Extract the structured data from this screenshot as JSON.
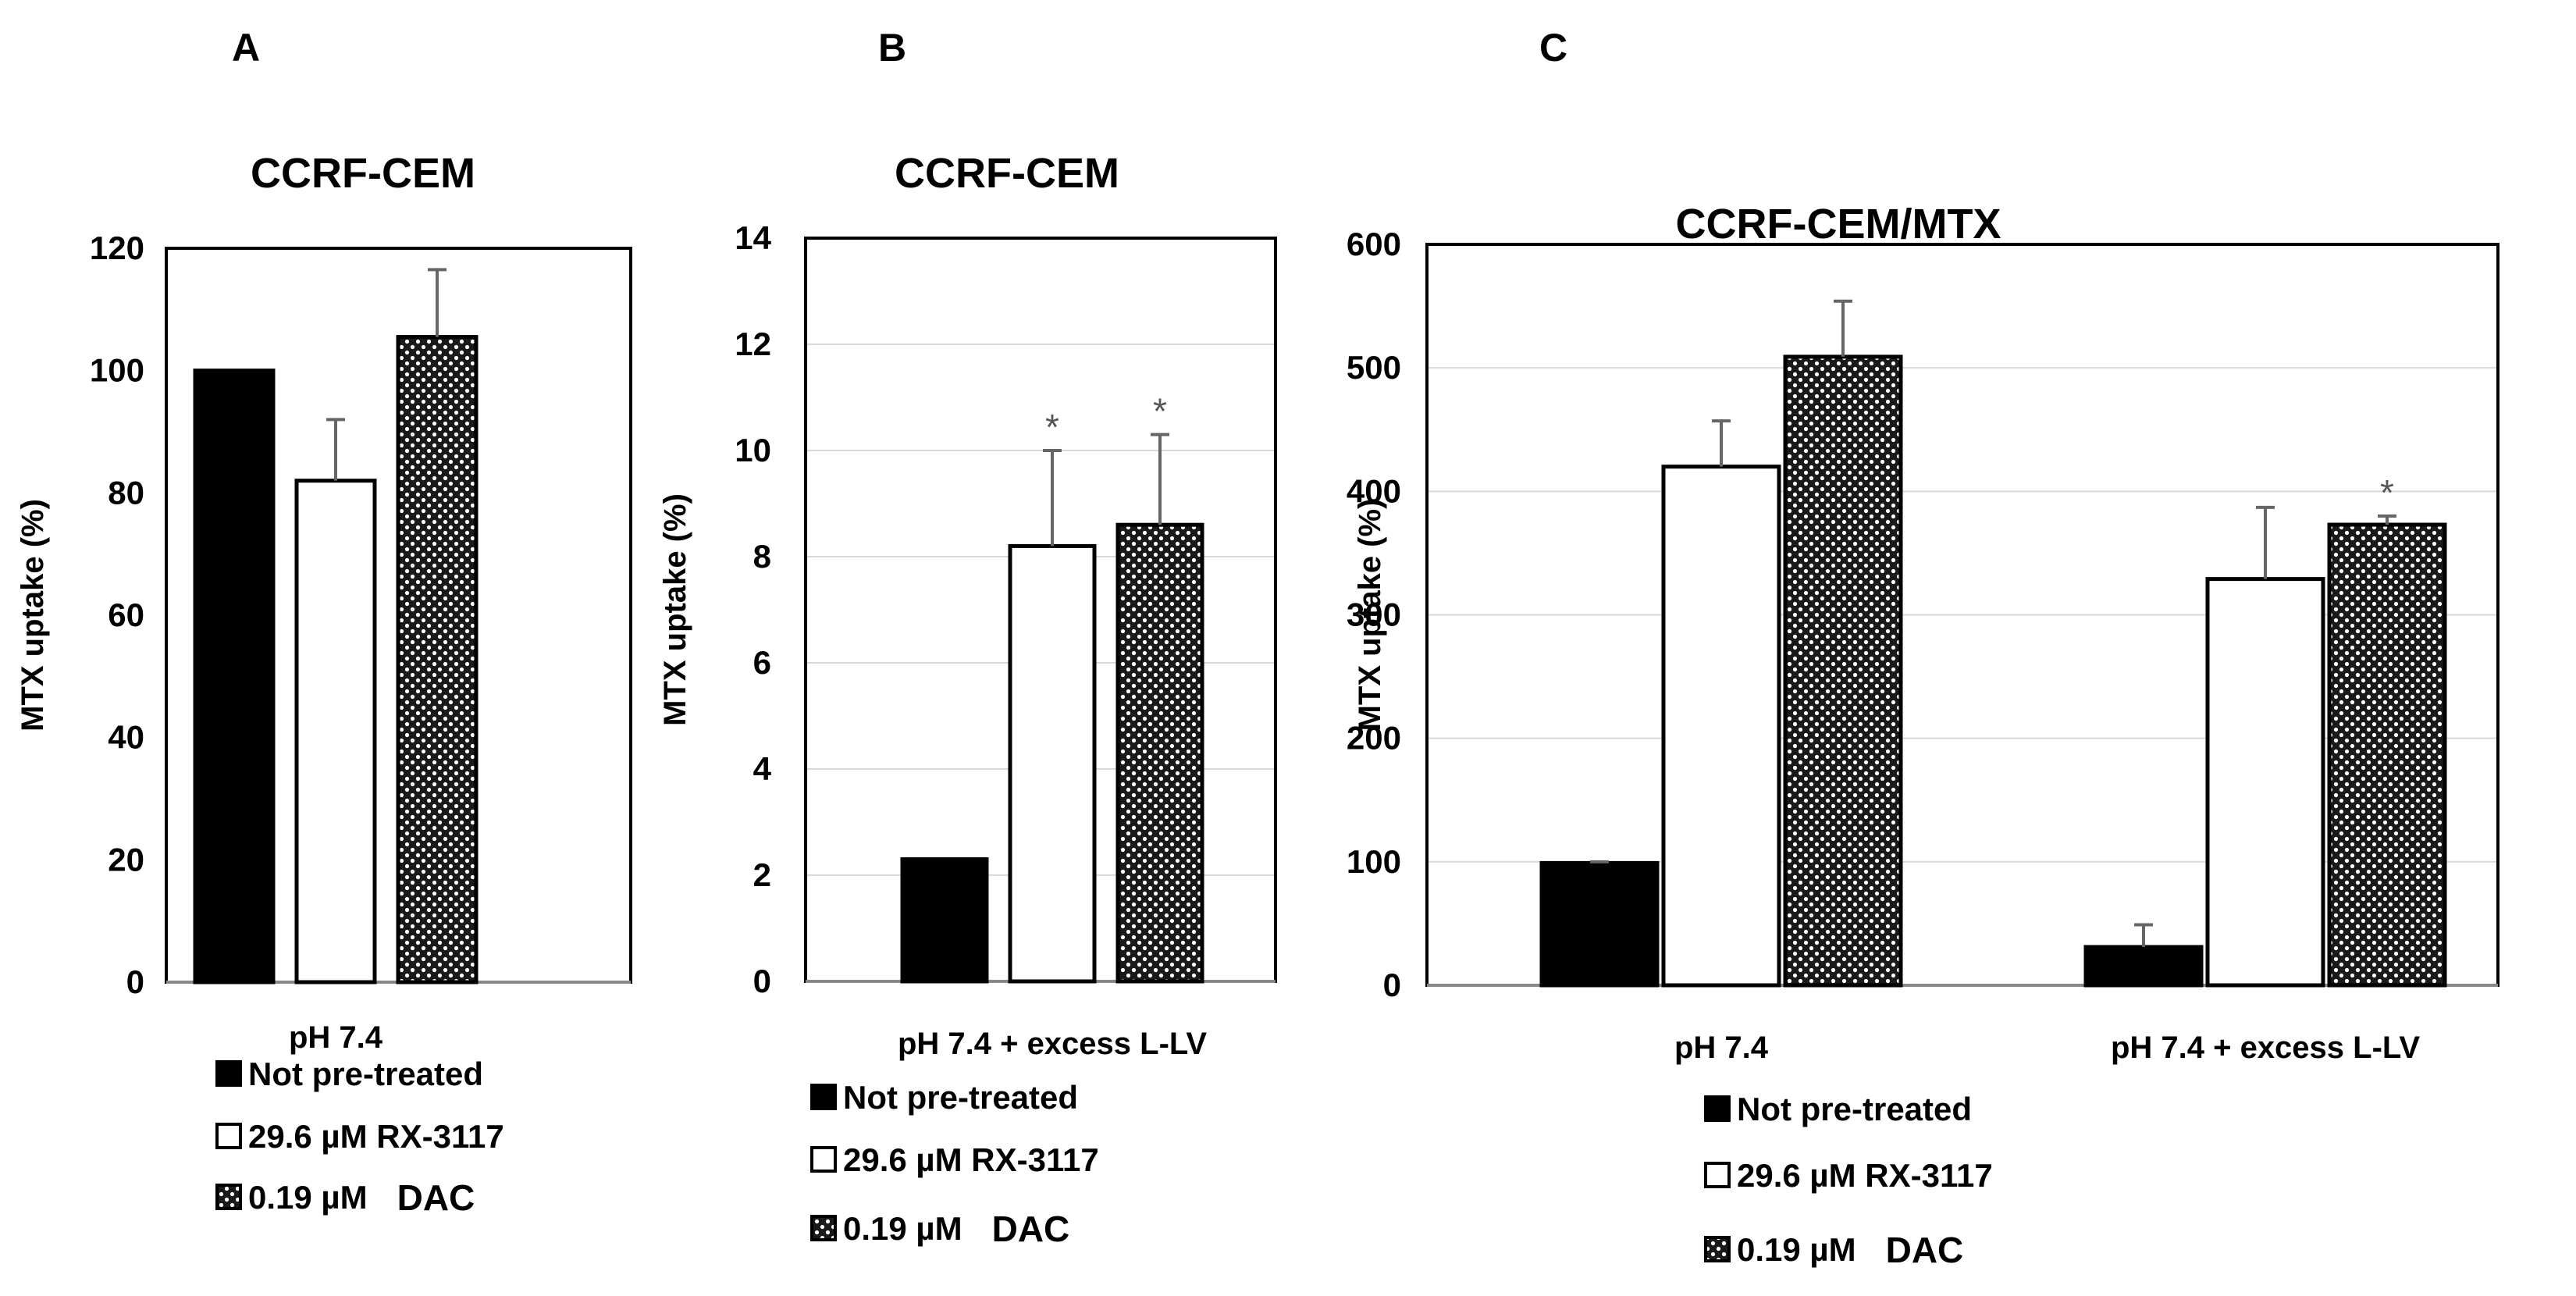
{
  "chart_data": [
    {
      "type": "bar",
      "panel": "A",
      "title": "CCRF-CEM",
      "ylabel": "MTX uptake (%)",
      "xlabel": "",
      "ylim": [
        0,
        120
      ],
      "yticks": [
        0,
        20,
        40,
        60,
        80,
        100,
        120
      ],
      "grid": false,
      "categories": [
        "pH 7.4"
      ],
      "series": [
        {
          "name": "Not pre-treated",
          "values": [
            100
          ],
          "errors": [
            0
          ],
          "significant": [
            false
          ]
        },
        {
          "name": "29.6 µM RX-3117",
          "values": [
            82
          ],
          "errors": [
            10
          ],
          "significant": [
            false
          ]
        },
        {
          "name": "0.19 µM DAC",
          "values": [
            105.5
          ],
          "errors": [
            11
          ],
          "significant": [
            false
          ]
        }
      ],
      "legend": [
        {
          "text": "Not pre-treated",
          "pattern": "solid"
        },
        {
          "text": "29.6 µM RX-3117",
          "pattern": "white"
        },
        {
          "text": "0.19 µM",
          "suffix": "DAC",
          "pattern": "checker"
        }
      ],
      "legend_position": "bottom"
    },
    {
      "type": "bar",
      "panel": "B",
      "title": "CCRF-CEM",
      "ylabel": "MTX uptake (%)",
      "xlabel": "",
      "ylim": [
        0,
        14
      ],
      "yticks": [
        0,
        2,
        4,
        6,
        8,
        10,
        12,
        14
      ],
      "grid": true,
      "categories": [
        "pH 7.4 + excess L-LV"
      ],
      "series": [
        {
          "name": "Not pre-treated",
          "values": [
            2.3
          ],
          "errors": [
            0
          ],
          "significant": [
            false
          ]
        },
        {
          "name": "29.6 µM RX-3117",
          "values": [
            8.2
          ],
          "errors": [
            1.8
          ],
          "significant": [
            true
          ]
        },
        {
          "name": "0.19 µM DAC",
          "values": [
            8.6
          ],
          "errors": [
            1.7
          ],
          "significant": [
            true
          ]
        }
      ],
      "annotation": "*",
      "legend": [
        {
          "text": "Not pre-treated",
          "pattern": "solid"
        },
        {
          "text": "29.6 µM RX-3117",
          "pattern": "white"
        },
        {
          "text": "0.19 µM",
          "suffix": "DAC",
          "pattern": "checker"
        }
      ],
      "legend_position": "bottom"
    },
    {
      "type": "bar",
      "panel": "C",
      "title": "CCRF-CEM/MTX",
      "ylabel": "MTX uptake (%)",
      "xlabel": "",
      "ylim": [
        0,
        600
      ],
      "yticks": [
        0,
        100,
        200,
        300,
        400,
        500,
        600
      ],
      "grid": true,
      "categories": [
        "pH 7.4",
        "pH 7.4 + excess L-LV"
      ],
      "series": [
        {
          "name": "Not pre-treated",
          "values": [
            99,
            31
          ],
          "errors": [
            1,
            18
          ],
          "significant": [
            false,
            false
          ]
        },
        {
          "name": "29.6 µM RX-3117",
          "values": [
            420,
            329
          ],
          "errors": [
            37,
            58
          ],
          "significant": [
            false,
            false
          ]
        },
        {
          "name": "0.19 µM DAC",
          "values": [
            509,
            373
          ],
          "errors": [
            45,
            7
          ],
          "significant": [
            false,
            true
          ]
        }
      ],
      "annotation": "*",
      "legend": [
        {
          "text": "Not pre-treated",
          "pattern": "solid"
        },
        {
          "text": "29.6 µM RX-3117",
          "pattern": "white"
        },
        {
          "text": "0.19 µM",
          "suffix": "DAC",
          "pattern": "checker"
        }
      ],
      "legend_position": "bottom"
    }
  ]
}
